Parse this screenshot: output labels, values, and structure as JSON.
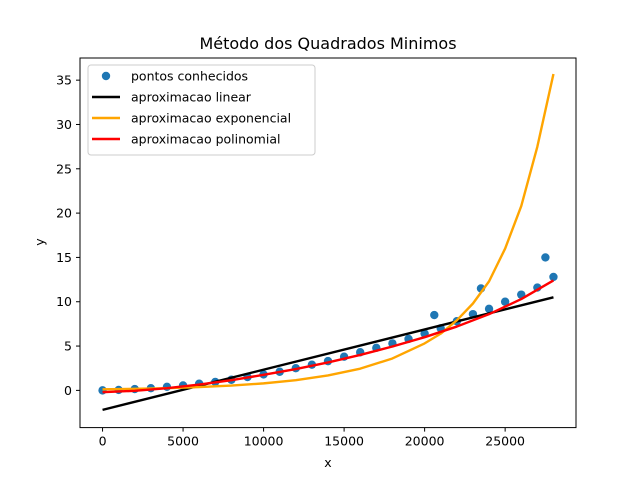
{
  "chart_data": {
    "type": "scatter",
    "title": "Método dos Quadrados Minimos",
    "xlabel": "x",
    "ylabel": "y",
    "xlim": [
      -1400,
      29400
    ],
    "ylim": [
      -4.2,
      37.5
    ],
    "xticks": [
      0,
      5000,
      10000,
      15000,
      20000,
      25000
    ],
    "yticks": [
      0,
      5,
      10,
      15,
      20,
      25,
      30,
      35
    ],
    "grid": false,
    "legend_position": "top-left",
    "series": [
      {
        "name": "pontos conhecidos",
        "kind": "scatter",
        "color": "#1f77b4",
        "x": [
          0,
          1000,
          2000,
          3000,
          4000,
          5000,
          6000,
          7000,
          8000,
          9000,
          10000,
          11000,
          12000,
          13000,
          14000,
          15000,
          16000,
          17000,
          18000,
          19000,
          20000,
          20600,
          21000,
          22000,
          23000,
          23500,
          24000,
          25000,
          26000,
          27000,
          27500,
          28000
        ],
        "y": [
          0.0,
          0.05,
          0.15,
          0.25,
          0.4,
          0.55,
          0.75,
          0.95,
          1.2,
          1.5,
          1.8,
          2.1,
          2.5,
          2.9,
          3.3,
          3.8,
          4.3,
          4.8,
          5.3,
          5.8,
          6.4,
          8.5,
          7.0,
          7.8,
          8.6,
          11.5,
          9.2,
          10.0,
          10.8,
          11.6,
          15.0,
          12.8
        ]
      },
      {
        "name": "aproximacao linear",
        "kind": "line",
        "color": "#000000",
        "x": [
          0,
          28000
        ],
        "y": [
          -2.2,
          10.5
        ]
      },
      {
        "name": "aproximacao exponencial",
        "kind": "line",
        "color": "#ffa500",
        "x": [
          0,
          2000,
          4000,
          6000,
          8000,
          10000,
          12000,
          14000,
          16000,
          18000,
          20000,
          21000,
          22000,
          23000,
          24000,
          25000,
          26000,
          27000,
          28000
        ],
        "y": [
          0.12,
          0.17,
          0.25,
          0.37,
          0.54,
          0.79,
          1.15,
          1.68,
          2.45,
          3.6,
          5.3,
          6.4,
          7.9,
          9.8,
          12.3,
          16.0,
          20.8,
          27.5,
          35.7
        ]
      },
      {
        "name": "aproximacao polinomial",
        "kind": "line",
        "color": "#ff0000",
        "x": [
          0,
          2000,
          4000,
          6000,
          8000,
          10000,
          12000,
          14000,
          16000,
          18000,
          20000,
          22000,
          24000,
          26000,
          28000
        ],
        "y": [
          -0.2,
          -0.05,
          0.25,
          0.65,
          1.15,
          1.75,
          2.4,
          3.15,
          4.0,
          4.95,
          6.0,
          7.2,
          8.6,
          10.3,
          12.4
        ]
      }
    ]
  }
}
